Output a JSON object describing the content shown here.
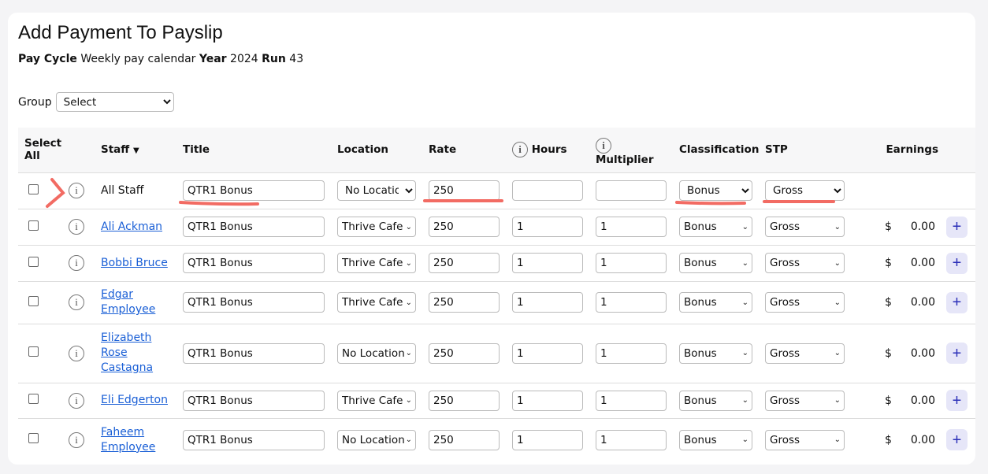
{
  "title": "Add Payment To Payslip",
  "meta": {
    "pay_cycle_label": "Pay Cycle",
    "pay_cycle": "Weekly pay calendar",
    "year_label": "Year",
    "year": "2024",
    "run_label": "Run",
    "run": "43"
  },
  "group": {
    "label": "Group",
    "value": "Select"
  },
  "columns": {
    "select_all": "Select All",
    "staff": "Staff",
    "title": "Title",
    "location": "Location",
    "rate": "Rate",
    "hours": "Hours",
    "multiplier": "Multiplier",
    "classification": "Classification",
    "stp": "STP",
    "earnings": "Earnings"
  },
  "all_staff": {
    "name": "All Staff",
    "title": "QTR1 Bonus",
    "location": "No Location",
    "rate": "250",
    "hours": "",
    "multiplier": "",
    "classification": "Bonus",
    "stp": "Gross"
  },
  "rows": [
    {
      "name": "Ali Ackman",
      "title": "QTR1 Bonus",
      "location": "Thrive Cafe",
      "rate": "250",
      "hours": "1",
      "multiplier": "1",
      "classification": "Bonus",
      "stp": "Gross",
      "currency": "$",
      "earnings": "0.00"
    },
    {
      "name": "Bobbi Bruce",
      "title": "QTR1 Bonus",
      "location": "Thrive Cafe",
      "rate": "250",
      "hours": "1",
      "multiplier": "1",
      "classification": "Bonus",
      "stp": "Gross",
      "currency": "$",
      "earnings": "0.00"
    },
    {
      "name": "Edgar Employee",
      "title": "QTR1 Bonus",
      "location": "Thrive Cafe",
      "rate": "250",
      "hours": "1",
      "multiplier": "1",
      "classification": "Bonus",
      "stp": "Gross",
      "currency": "$",
      "earnings": "0.00"
    },
    {
      "name": "Elizabeth Rose Castagna",
      "title": "QTR1 Bonus",
      "location": "No Location",
      "rate": "250",
      "hours": "1",
      "multiplier": "1",
      "classification": "Bonus",
      "stp": "Gross",
      "currency": "$",
      "earnings": "0.00"
    },
    {
      "name": "Eli Edgerton",
      "title": "QTR1 Bonus",
      "location": "Thrive Cafe",
      "rate": "250",
      "hours": "1",
      "multiplier": "1",
      "classification": "Bonus",
      "stp": "Gross",
      "currency": "$",
      "earnings": "0.00"
    },
    {
      "name": "Faheem Employee",
      "title": "QTR1 Bonus",
      "location": "No Location",
      "rate": "250",
      "hours": "1",
      "multiplier": "1",
      "classification": "Bonus",
      "stp": "Gross",
      "currency": "$",
      "earnings": "0.00"
    }
  ],
  "icons": {
    "info": "info-circle-icon",
    "sort": "caret-down-icon",
    "add": "plus-icon"
  },
  "colors": {
    "link": "#1a5fd6",
    "annotation": "#f26b63",
    "add_button_bg": "#e6e6f8"
  }
}
